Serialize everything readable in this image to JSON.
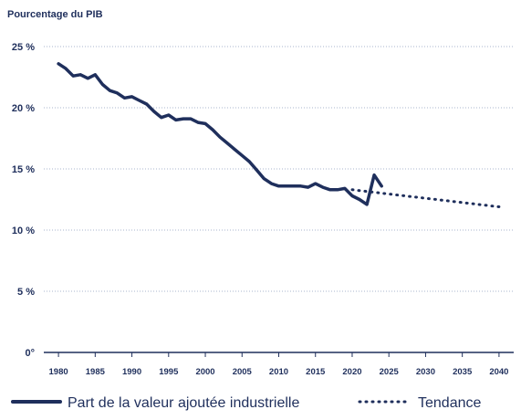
{
  "chart_data": {
    "type": "line",
    "ylabel": "Pourcentage du PIB",
    "ytick_labels": [
      "25 %",
      "20 %",
      "15 %",
      "10 %",
      "5 %",
      "0°"
    ],
    "yticks": [
      25,
      20,
      15,
      10,
      5,
      0
    ],
    "ylim": [
      0,
      25
    ],
    "xlim": [
      1978,
      2042
    ],
    "xticks": [
      1980,
      1985,
      1990,
      1995,
      2000,
      2005,
      2010,
      2015,
      2020,
      2025,
      2030,
      2035,
      2040
    ],
    "grid": "horizontal dotted",
    "legend_position": "bottom",
    "series": [
      {
        "name": "Part de la valeur ajoutée industrielle",
        "style": "solid",
        "color": "#1f2f5c",
        "x": [
          1980,
          1981,
          1982,
          1983,
          1984,
          1985,
          1986,
          1987,
          1988,
          1989,
          1990,
          1991,
          1992,
          1993,
          1994,
          1995,
          1996,
          1997,
          1998,
          1999,
          2000,
          2001,
          2002,
          2003,
          2004,
          2005,
          2006,
          2007,
          2008,
          2009,
          2010,
          2011,
          2012,
          2013,
          2014,
          2015,
          2016,
          2017,
          2018,
          2019,
          2020,
          2021,
          2022,
          2023,
          2024
        ],
        "y": [
          23.6,
          23.2,
          22.6,
          22.7,
          22.4,
          22.7,
          21.9,
          21.4,
          21.2,
          20.8,
          20.9,
          20.6,
          20.3,
          19.7,
          19.2,
          19.4,
          19.0,
          19.1,
          19.1,
          18.8,
          18.7,
          18.2,
          17.6,
          17.1,
          16.6,
          16.1,
          15.6,
          14.9,
          14.2,
          13.8,
          13.6,
          13.6,
          13.6,
          13.6,
          13.5,
          13.8,
          13.5,
          13.3,
          13.3,
          13.4,
          12.8,
          12.5,
          12.1,
          14.5,
          13.6
        ]
      },
      {
        "name": "Tendance",
        "style": "dotted",
        "color": "#1f2f5c",
        "x": [
          2020,
          2040
        ],
        "y": [
          13.3,
          11.9
        ]
      }
    ]
  }
}
